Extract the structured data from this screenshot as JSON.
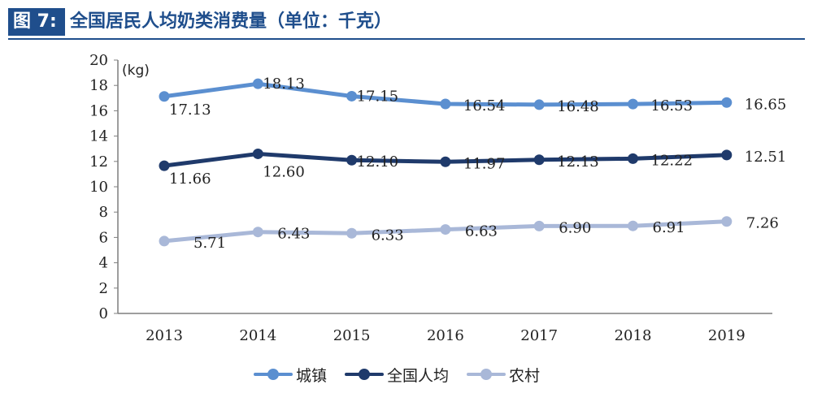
{
  "header": {
    "figure_label": "图 7:",
    "title": "全国居民人均奶类消费量（单位：千克）"
  },
  "chart_data": {
    "type": "line",
    "unit_label": "(kg)",
    "categories": [
      "2013",
      "2014",
      "2015",
      "2016",
      "2017",
      "2018",
      "2019"
    ],
    "y_ticks": [
      "0",
      "2",
      "4",
      "6",
      "8",
      "10",
      "12",
      "14",
      "16",
      "18",
      "20"
    ],
    "ylim": [
      0,
      20
    ],
    "grid": false,
    "legend_position": "bottom",
    "series": [
      {
        "name": "城镇",
        "color": "#5b8fd0",
        "values": [
          17.13,
          18.13,
          17.15,
          16.54,
          16.48,
          16.53,
          16.65
        ],
        "labels": [
          "17.13",
          "18.13",
          "17.15",
          "16.54",
          "16.48",
          "16.53",
          "16.65"
        ]
      },
      {
        "name": "全国人均",
        "color": "#1f3a6b",
        "values": [
          11.66,
          12.6,
          12.1,
          11.97,
          12.13,
          12.22,
          12.51
        ],
        "labels": [
          "11.66",
          "12.60",
          "12.10",
          "11.97",
          "12.13",
          "12.22",
          "12.51"
        ]
      },
      {
        "name": "农村",
        "color": "#a9b8d8",
        "values": [
          5.71,
          6.43,
          6.33,
          6.63,
          6.9,
          6.91,
          7.26
        ],
        "labels": [
          "5.71",
          "6.43",
          "6.33",
          "6.63",
          "6.90",
          "6.91",
          "7.26"
        ]
      }
    ]
  }
}
